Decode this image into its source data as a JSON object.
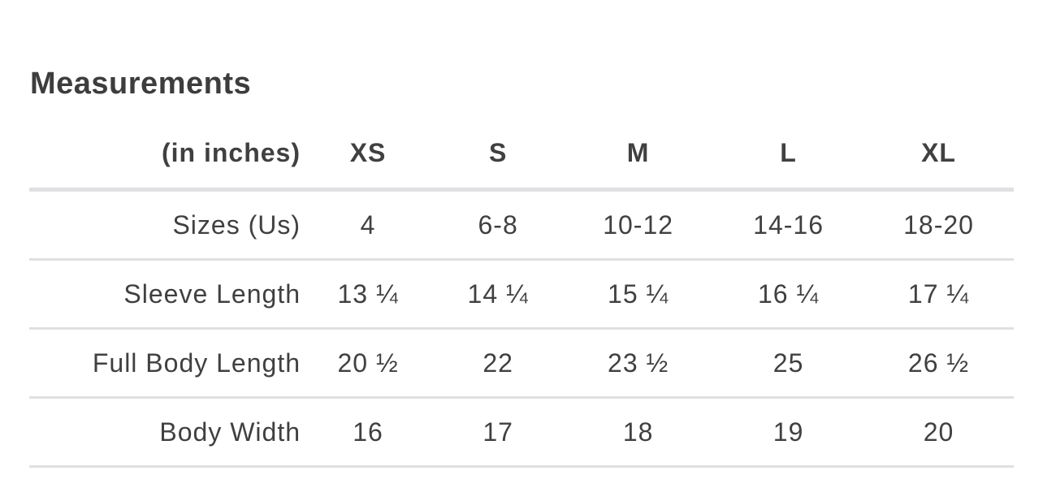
{
  "title": "Measurements",
  "table": {
    "unit_label": "(in inches)",
    "columns": [
      "XS",
      "S",
      "M",
      "L",
      "XL"
    ],
    "rows": [
      {
        "label": "Sizes (Us)",
        "values": [
          "4",
          "6-8",
          "10-12",
          "14-16",
          "18-20"
        ]
      },
      {
        "label": "Sleeve Length",
        "values": [
          "13 ¼",
          "14 ¼",
          "15 ¼",
          "16 ¼",
          "17 ¼"
        ]
      },
      {
        "label": "Full Body Length",
        "values": [
          "20 ½",
          "22",
          "23 ½",
          "25",
          "26 ½"
        ]
      },
      {
        "label": "Body Width",
        "values": [
          "16",
          "17",
          "18",
          "19",
          "20"
        ]
      }
    ]
  },
  "colors": {
    "text": "#404040",
    "divider": "#e0e0e3"
  }
}
